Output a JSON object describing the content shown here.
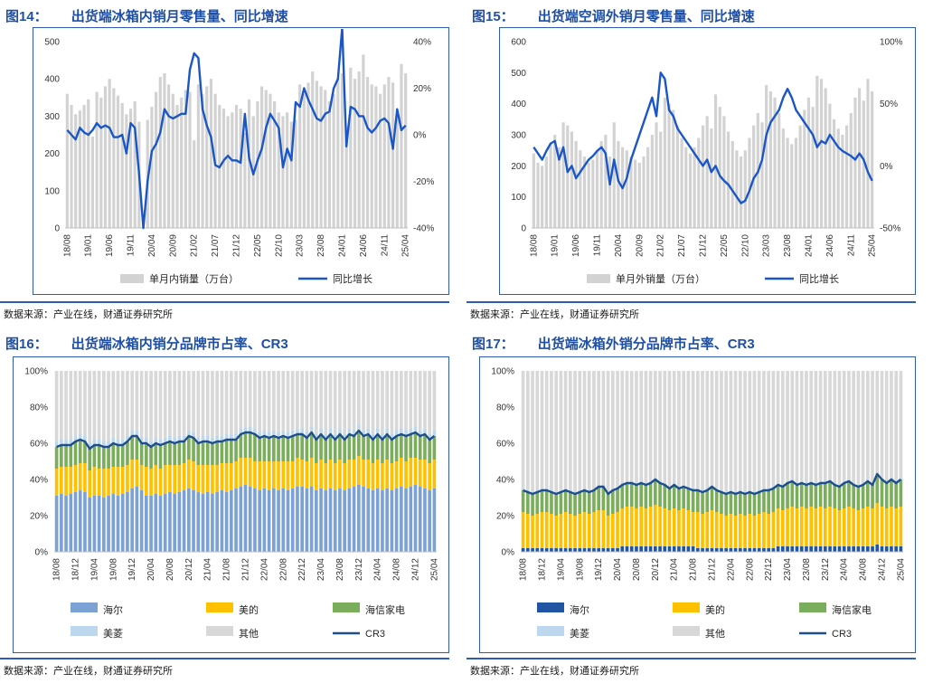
{
  "page": {
    "source_text": "数据来源：产业在线，财通证券研究所"
  },
  "chart_data": [
    {
      "id": "fig14",
      "type": "bar+line",
      "title_prefix": "图14：",
      "title": "出货端冰箱内销月零售量、同比增速",
      "legend": [
        "单月内销量（万台）",
        "同比增长"
      ],
      "left_axis": {
        "min": 0,
        "max": 500,
        "ticks": [
          0,
          100,
          200,
          300,
          400,
          500
        ]
      },
      "right_axis": {
        "min": -40,
        "max": 40,
        "ticks": [
          -40,
          -20,
          0,
          20,
          40
        ],
        "unit": "%"
      },
      "x_tick_step": 5,
      "x_tick_labels": [
        "18/08",
        "19/01",
        "19/06",
        "19/11",
        "20/04",
        "20/09",
        "21/02",
        "21/07",
        "21/12",
        "22/05",
        "22/10",
        "23/03",
        "23/08",
        "24/01",
        "24/06",
        "24/11",
        "25/04"
      ],
      "bars_name": "单月内销量（万台）",
      "bars": [
        360,
        330,
        305,
        315,
        330,
        345,
        245,
        365,
        350,
        380,
        400,
        375,
        355,
        335,
        305,
        320,
        340,
        285,
        15,
        290,
        325,
        365,
        405,
        415,
        385,
        360,
        330,
        350,
        370,
        365,
        235,
        385,
        360,
        380,
        400,
        360,
        330,
        320,
        300,
        310,
        330,
        320,
        255,
        345,
        300,
        340,
        380,
        370,
        360,
        340,
        310,
        300,
        310,
        285,
        290,
        385,
        360,
        390,
        420,
        395,
        380,
        370,
        340,
        360,
        400,
        415,
        275,
        430,
        400,
        420,
        465,
        405,
        385,
        380,
        360,
        385,
        405,
        390,
        305,
        440,
        415
      ],
      "line_name": "同比增长",
      "line": [
        2,
        0,
        -2,
        3,
        1,
        0,
        2,
        5,
        3,
        4,
        3,
        -1,
        -1,
        0,
        -8,
        5,
        3,
        -17,
        -40,
        -20,
        -7,
        -4,
        1,
        11,
        8,
        7,
        8,
        9,
        9,
        28,
        35,
        33,
        11,
        4,
        -1,
        -13,
        -14,
        -11,
        -9,
        -11,
        -11,
        -12,
        9,
        -10,
        -17,
        -11,
        -6,
        3,
        9,
        6,
        3,
        -14,
        -6,
        -11,
        14,
        12,
        20,
        15,
        11,
        7,
        6,
        9,
        10,
        20,
        24,
        46,
        -5,
        12,
        11,
        8,
        8,
        3,
        1,
        3,
        6,
        7,
        5,
        -6,
        11,
        2,
        4
      ],
      "colors": {
        "bar": "#D2D2D2",
        "line": "#1A56C8"
      }
    },
    {
      "id": "fig15",
      "type": "bar+line",
      "title_prefix": "图15：",
      "title": "出货端空调外销月零售量、同比增速",
      "legend": [
        "单月外销量（万台）",
        "同比增长"
      ],
      "left_axis": {
        "min": 0,
        "max": 600,
        "ticks": [
          0,
          100,
          200,
          300,
          400,
          500,
          600
        ]
      },
      "right_axis": {
        "min": -50,
        "max": 100,
        "ticks": [
          -50,
          0,
          50,
          100
        ],
        "unit": "%"
      },
      "x_tick_step": 5,
      "x_tick_labels": [
        "18/08",
        "19/01",
        "19/06",
        "19/11",
        "20/04",
        "20/09",
        "21/02",
        "21/07",
        "21/12",
        "22/05",
        "22/10",
        "23/03",
        "23/08",
        "24/01",
        "24/06",
        "24/11",
        "25/04"
      ],
      "bars_name": "单月外销量（万台）",
      "bars": [
        240,
        210,
        200,
        230,
        270,
        300,
        260,
        340,
        330,
        310,
        280,
        250,
        230,
        210,
        220,
        250,
        280,
        300,
        230,
        340,
        280,
        260,
        250,
        230,
        220,
        210,
        230,
        260,
        300,
        340,
        310,
        420,
        400,
        380,
        330,
        290,
        260,
        240,
        260,
        290,
        330,
        360,
        320,
        430,
        390,
        360,
        310,
        280,
        250,
        230,
        250,
        290,
        330,
        370,
        340,
        460,
        440,
        420,
        370,
        320,
        290,
        270,
        290,
        330,
        380,
        420,
        390,
        490,
        480,
        450,
        400,
        350,
        320,
        300,
        330,
        370,
        420,
        450,
        410,
        480,
        440
      ],
      "line_name": "同比增长",
      "line": [
        15,
        10,
        5,
        12,
        18,
        20,
        5,
        15,
        -5,
        0,
        -10,
        -5,
        0,
        5,
        8,
        12,
        15,
        10,
        -15,
        5,
        -12,
        -18,
        -10,
        5,
        15,
        25,
        35,
        45,
        55,
        40,
        75,
        70,
        45,
        40,
        30,
        25,
        20,
        15,
        10,
        5,
        0,
        5,
        -5,
        0,
        -8,
        -12,
        -15,
        -20,
        -25,
        -30,
        -28,
        -20,
        -10,
        -5,
        5,
        25,
        35,
        40,
        45,
        55,
        62,
        55,
        45,
        40,
        35,
        30,
        25,
        15,
        20,
        18,
        25,
        20,
        15,
        12,
        10,
        8,
        5,
        10,
        5,
        -5,
        -12
      ],
      "colors": {
        "bar": "#D2D2D2",
        "line": "#1A56C8"
      }
    },
    {
      "id": "fig16",
      "type": "stacked-bar+line",
      "title_prefix": "图16：",
      "title": "出货端冰箱内销分品牌市占率、CR3",
      "y_axis": {
        "min": 0,
        "max": 100,
        "ticks": [
          0,
          20,
          40,
          60,
          80,
          100
        ],
        "unit": "%"
      },
      "x_tick_step": 4,
      "x_tick_labels": [
        "18/08",
        "18/12",
        "19/04",
        "19/08",
        "19/12",
        "20/04",
        "20/08",
        "20/12",
        "21/04",
        "21/08",
        "21/12",
        "22/04",
        "22/08",
        "22/12",
        "23/04",
        "23/08",
        "23/12",
        "24/04",
        "24/08",
        "24/12",
        "25/04"
      ],
      "series": [
        {
          "name": "海尔",
          "color": "#7CA1D4",
          "values": [
            31,
            32,
            31,
            32,
            33,
            34,
            33,
            30,
            31,
            31,
            30,
            31,
            32,
            31,
            32,
            33,
            35,
            36,
            34,
            31,
            31,
            32,
            31,
            32,
            33,
            32,
            33,
            34,
            35,
            34,
            33,
            32,
            33,
            32,
            33,
            34,
            33,
            34,
            35,
            36,
            37,
            36,
            35,
            34,
            35,
            34,
            35,
            34,
            35,
            34,
            35,
            36,
            36,
            35,
            36,
            34,
            35,
            34,
            35,
            34,
            35,
            34,
            35,
            36,
            37,
            36,
            35,
            34,
            35,
            34,
            35,
            34,
            35,
            36,
            35,
            36,
            37,
            36,
            35,
            34,
            35
          ]
        },
        {
          "name": "美的",
          "color": "#FFC000",
          "values": [
            15,
            15,
            16,
            15,
            15,
            15,
            16,
            15,
            16,
            15,
            16,
            15,
            15,
            16,
            15,
            15,
            16,
            15,
            14,
            16,
            15,
            16,
            15,
            16,
            15,
            16,
            15,
            15,
            16,
            16,
            15,
            16,
            15,
            16,
            15,
            15,
            16,
            15,
            15,
            16,
            15,
            16,
            15,
            16,
            15,
            16,
            15,
            16,
            15,
            16,
            15,
            16,
            15,
            15,
            16,
            15,
            16,
            15,
            16,
            15,
            16,
            15,
            16,
            15,
            16,
            15,
            16,
            15,
            16,
            15,
            16,
            15,
            15,
            16,
            15,
            16,
            15,
            15,
            16,
            15,
            16
          ]
        },
        {
          "name": "海信家电",
          "color": "#7BAE5C",
          "values": [
            12,
            12,
            12,
            12,
            13,
            13,
            12,
            12,
            12,
            13,
            12,
            12,
            13,
            12,
            12,
            13,
            13,
            13,
            12,
            13,
            12,
            12,
            13,
            12,
            13,
            12,
            13,
            12,
            13,
            13,
            12,
            13,
            13,
            12,
            13,
            12,
            13,
            13,
            12,
            13,
            14,
            14,
            15,
            13,
            14,
            13,
            14,
            13,
            14,
            13,
            14,
            13,
            14,
            13,
            14,
            13,
            14,
            13,
            14,
            13,
            14,
            13,
            14,
            13,
            14,
            13,
            14,
            13,
            14,
            13,
            14,
            13,
            14,
            13,
            14,
            13,
            14,
            13,
            14,
            13,
            13
          ]
        },
        {
          "name": "美菱",
          "color": "#BDD7EE",
          "const_value": 3
        },
        {
          "name": "其他",
          "color": "#D8D8D8",
          "remainder_to_100": true
        }
      ],
      "cr3": {
        "name": "CR3",
        "color": "#1F4E8C",
        "note": "CR3 = 海尔+美的+海信家电 之和"
      }
    },
    {
      "id": "fig17",
      "type": "stacked-bar+line",
      "title_prefix": "图17：",
      "title": "出货端冰箱外销分品牌市占率、CR3",
      "y_axis": {
        "min": 0,
        "max": 100,
        "ticks": [
          0,
          20,
          40,
          60,
          80,
          100
        ],
        "unit": "%"
      },
      "x_tick_step": 4,
      "x_tick_labels": [
        "18/08",
        "18/12",
        "19/04",
        "19/08",
        "19/12",
        "20/04",
        "20/08",
        "20/12",
        "21/04",
        "21/08",
        "21/12",
        "22/04",
        "22/08",
        "22/12",
        "23/04",
        "23/08",
        "23/12",
        "24/04",
        "24/08",
        "24/12",
        "25/04"
      ],
      "series": [
        {
          "name": "海尔",
          "color": "#2155A3",
          "values": [
            2,
            2,
            2,
            2,
            2,
            2,
            2,
            2,
            2,
            2,
            2,
            2,
            2,
            2,
            2,
            2,
            2,
            2,
            2,
            2,
            2,
            3,
            3,
            3,
            3,
            3,
            3,
            3,
            3,
            3,
            3,
            3,
            3,
            3,
            3,
            3,
            3,
            2,
            2,
            2,
            2,
            2,
            2,
            2,
            2,
            2,
            2,
            2,
            2,
            2,
            2,
            2,
            2,
            2,
            3,
            3,
            3,
            3,
            3,
            3,
            3,
            3,
            3,
            3,
            3,
            3,
            3,
            3,
            3,
            3,
            3,
            3,
            3,
            3,
            3,
            4,
            3,
            3,
            3,
            3,
            3
          ]
        },
        {
          "name": "美的",
          "color": "#FFC000",
          "values": [
            20,
            19,
            18,
            19,
            20,
            20,
            19,
            18,
            19,
            20,
            19,
            18,
            19,
            20,
            19,
            20,
            21,
            21,
            18,
            19,
            20,
            21,
            22,
            22,
            21,
            22,
            21,
            22,
            23,
            22,
            21,
            20,
            21,
            20,
            21,
            20,
            19,
            20,
            19,
            20,
            21,
            20,
            19,
            18,
            19,
            18,
            19,
            18,
            19,
            18,
            19,
            20,
            19,
            20,
            21,
            20,
            21,
            22,
            21,
            22,
            21,
            22,
            21,
            22,
            21,
            22,
            21,
            20,
            21,
            22,
            21,
            20,
            21,
            22,
            21,
            23,
            22,
            21,
            22,
            21,
            22
          ]
        },
        {
          "name": "海信家电",
          "color": "#7BAE5C",
          "values": [
            12,
            12,
            12,
            12,
            12,
            12,
            12,
            12,
            12,
            12,
            12,
            12,
            12,
            12,
            12,
            12,
            13,
            13,
            12,
            13,
            13,
            13,
            13,
            13,
            13,
            13,
            13,
            13,
            14,
            13,
            13,
            12,
            13,
            12,
            12,
            12,
            12,
            12,
            12,
            12,
            13,
            12,
            12,
            12,
            12,
            12,
            12,
            12,
            12,
            12,
            12,
            12,
            13,
            13,
            13,
            13,
            14,
            14,
            13,
            13,
            13,
            13,
            13,
            13,
            14,
            14,
            13,
            13,
            14,
            14,
            13,
            13,
            13,
            14,
            13,
            16,
            15,
            14,
            15,
            14,
            15
          ]
        },
        {
          "name": "美菱",
          "color": "#BDD7EE",
          "const_value": 1
        },
        {
          "name": "其他",
          "color": "#D8D8D8",
          "remainder_to_100": true
        }
      ],
      "cr3": {
        "name": "CR3",
        "color": "#1F4E8C",
        "note": "CR3 = 海尔+美的+海信家电 之和"
      }
    }
  ]
}
